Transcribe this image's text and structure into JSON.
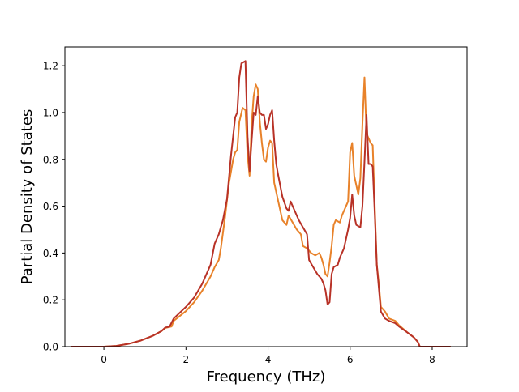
{
  "chart_data": {
    "type": "line",
    "xlabel": "Frequency (THz)",
    "ylabel": "Partial Density of States",
    "xlim": [
      -0.95,
      8.85
    ],
    "ylim": [
      0.0,
      1.28
    ],
    "xticks": [
      0,
      2,
      4,
      6,
      8
    ],
    "yticks": [
      0.0,
      0.2,
      0.4,
      0.6,
      0.8,
      1.0,
      1.2
    ],
    "grid": false,
    "legend": "none",
    "series": [
      {
        "color": "#e8822a",
        "points": [
          [
            -0.8,
            0.0
          ],
          [
            0.0,
            0.0
          ],
          [
            0.3,
            0.003
          ],
          [
            0.6,
            0.012
          ],
          [
            0.9,
            0.026
          ],
          [
            1.2,
            0.047
          ],
          [
            1.4,
            0.066
          ],
          [
            1.5,
            0.08
          ],
          [
            1.65,
            0.086
          ],
          [
            1.7,
            0.11
          ],
          [
            2.0,
            0.152
          ],
          [
            2.2,
            0.19
          ],
          [
            2.4,
            0.24
          ],
          [
            2.6,
            0.3
          ],
          [
            2.7,
            0.34
          ],
          [
            2.8,
            0.37
          ],
          [
            2.85,
            0.42
          ],
          [
            2.95,
            0.55
          ],
          [
            3.05,
            0.7
          ],
          [
            3.15,
            0.8
          ],
          [
            3.2,
            0.83
          ],
          [
            3.25,
            0.84
          ],
          [
            3.3,
            0.96
          ],
          [
            3.38,
            1.02
          ],
          [
            3.45,
            1.01
          ],
          [
            3.5,
            0.82
          ],
          [
            3.55,
            0.73
          ],
          [
            3.6,
            0.95
          ],
          [
            3.65,
            1.07
          ],
          [
            3.7,
            1.12
          ],
          [
            3.75,
            1.1
          ],
          [
            3.8,
            0.96
          ],
          [
            3.85,
            0.87
          ],
          [
            3.9,
            0.8
          ],
          [
            3.95,
            0.79
          ],
          [
            4.0,
            0.85
          ],
          [
            4.05,
            0.88
          ],
          [
            4.1,
            0.87
          ],
          [
            4.15,
            0.7
          ],
          [
            4.25,
            0.62
          ],
          [
            4.35,
            0.54
          ],
          [
            4.45,
            0.52
          ],
          [
            4.5,
            0.56
          ],
          [
            4.6,
            0.53
          ],
          [
            4.7,
            0.5
          ],
          [
            4.8,
            0.48
          ],
          [
            4.85,
            0.43
          ],
          [
            4.95,
            0.42
          ],
          [
            5.05,
            0.4
          ],
          [
            5.15,
            0.39
          ],
          [
            5.25,
            0.4
          ],
          [
            5.3,
            0.38
          ],
          [
            5.35,
            0.35
          ],
          [
            5.4,
            0.31
          ],
          [
            5.45,
            0.3
          ],
          [
            5.5,
            0.36
          ],
          [
            5.55,
            0.43
          ],
          [
            5.6,
            0.52
          ],
          [
            5.65,
            0.54
          ],
          [
            5.75,
            0.53
          ],
          [
            5.8,
            0.56
          ],
          [
            5.9,
            0.6
          ],
          [
            5.95,
            0.62
          ],
          [
            6.0,
            0.83
          ],
          [
            6.05,
            0.87
          ],
          [
            6.1,
            0.73
          ],
          [
            6.2,
            0.65
          ],
          [
            6.25,
            0.72
          ],
          [
            6.3,
            0.95
          ],
          [
            6.35,
            1.15
          ],
          [
            6.4,
            0.91
          ],
          [
            6.5,
            0.87
          ],
          [
            6.55,
            0.86
          ],
          [
            6.6,
            0.6
          ],
          [
            6.65,
            0.35
          ],
          [
            6.7,
            0.27
          ],
          [
            6.75,
            0.17
          ],
          [
            6.85,
            0.15
          ],
          [
            6.95,
            0.12
          ],
          [
            7.1,
            0.11
          ],
          [
            7.2,
            0.09
          ],
          [
            7.4,
            0.06
          ],
          [
            7.55,
            0.04
          ],
          [
            7.65,
            0.02
          ],
          [
            7.7,
            0.0
          ],
          [
            8.45,
            0.0
          ]
        ]
      },
      {
        "color": "#b83227",
        "points": [
          [
            -0.8,
            0.0
          ],
          [
            0.0,
            0.0
          ],
          [
            0.3,
            0.003
          ],
          [
            0.6,
            0.012
          ],
          [
            0.9,
            0.026
          ],
          [
            1.2,
            0.047
          ],
          [
            1.4,
            0.066
          ],
          [
            1.5,
            0.082
          ],
          [
            1.6,
            0.085
          ],
          [
            1.7,
            0.12
          ],
          [
            2.0,
            0.17
          ],
          [
            2.2,
            0.21
          ],
          [
            2.4,
            0.27
          ],
          [
            2.6,
            0.35
          ],
          [
            2.7,
            0.44
          ],
          [
            2.8,
            0.48
          ],
          [
            2.9,
            0.54
          ],
          [
            3.0,
            0.63
          ],
          [
            3.1,
            0.82
          ],
          [
            3.2,
            0.98
          ],
          [
            3.25,
            1.0
          ],
          [
            3.3,
            1.15
          ],
          [
            3.35,
            1.21
          ],
          [
            3.45,
            1.22
          ],
          [
            3.5,
            0.9
          ],
          [
            3.55,
            0.75
          ],
          [
            3.6,
            0.88
          ],
          [
            3.65,
            1.0
          ],
          [
            3.7,
            0.99
          ],
          [
            3.75,
            1.07
          ],
          [
            3.8,
            1.0
          ],
          [
            3.85,
            0.99
          ],
          [
            3.9,
            0.99
          ],
          [
            3.95,
            0.93
          ],
          [
            4.0,
            0.95
          ],
          [
            4.05,
            0.99
          ],
          [
            4.1,
            1.01
          ],
          [
            4.15,
            0.88
          ],
          [
            4.2,
            0.78
          ],
          [
            4.25,
            0.73
          ],
          [
            4.35,
            0.64
          ],
          [
            4.45,
            0.59
          ],
          [
            4.5,
            0.58
          ],
          [
            4.55,
            0.62
          ],
          [
            4.65,
            0.58
          ],
          [
            4.75,
            0.54
          ],
          [
            4.85,
            0.51
          ],
          [
            4.95,
            0.48
          ],
          [
            5.0,
            0.37
          ],
          [
            5.1,
            0.34
          ],
          [
            5.2,
            0.31
          ],
          [
            5.3,
            0.29
          ],
          [
            5.35,
            0.27
          ],
          [
            5.4,
            0.24
          ],
          [
            5.45,
            0.18
          ],
          [
            5.5,
            0.19
          ],
          [
            5.55,
            0.31
          ],
          [
            5.6,
            0.34
          ],
          [
            5.7,
            0.35
          ],
          [
            5.75,
            0.38
          ],
          [
            5.85,
            0.42
          ],
          [
            5.95,
            0.5
          ],
          [
            6.0,
            0.55
          ],
          [
            6.05,
            0.65
          ],
          [
            6.1,
            0.56
          ],
          [
            6.15,
            0.52
          ],
          [
            6.25,
            0.51
          ],
          [
            6.3,
            0.6
          ],
          [
            6.35,
            0.79
          ],
          [
            6.4,
            0.99
          ],
          [
            6.45,
            0.78
          ],
          [
            6.5,
            0.78
          ],
          [
            6.55,
            0.77
          ],
          [
            6.6,
            0.57
          ],
          [
            6.65,
            0.35
          ],
          [
            6.7,
            0.25
          ],
          [
            6.75,
            0.15
          ],
          [
            6.85,
            0.12
          ],
          [
            6.95,
            0.11
          ],
          [
            7.1,
            0.1
          ],
          [
            7.2,
            0.085
          ],
          [
            7.4,
            0.06
          ],
          [
            7.55,
            0.04
          ],
          [
            7.65,
            0.02
          ],
          [
            7.7,
            0.0
          ],
          [
            8.45,
            0.0
          ]
        ]
      }
    ]
  }
}
